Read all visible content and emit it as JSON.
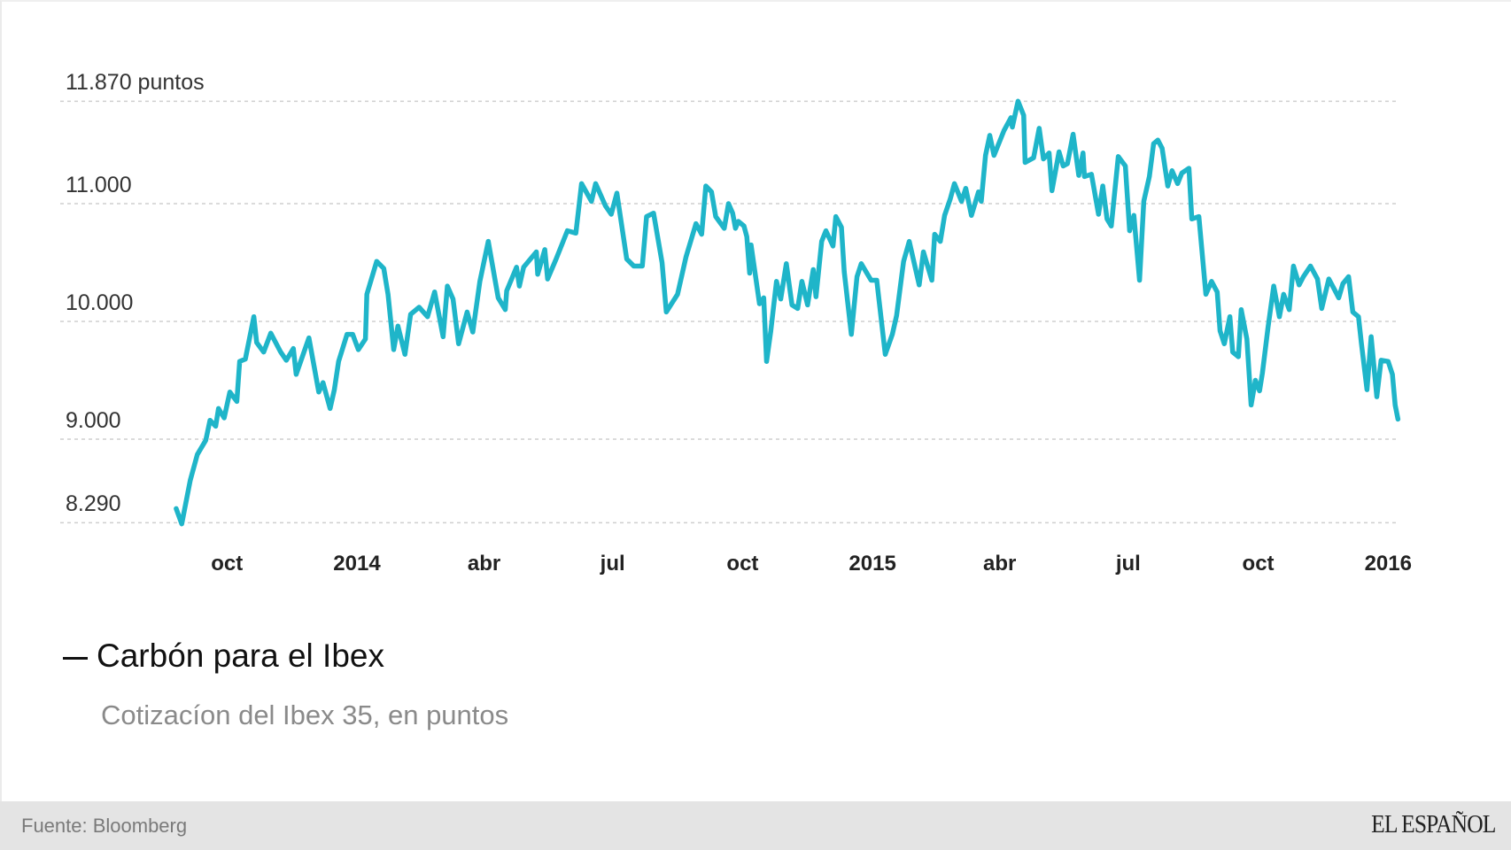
{
  "chart_data": {
    "type": "line",
    "title": "Carbón para el Ibex",
    "subtitle": "Cotizacíon del Ibex 35, en puntos",
    "xlabel": "",
    "ylabel": "puntos",
    "ylim": [
      8290,
      11870
    ],
    "grid": true,
    "legend_position": "bottom-left",
    "y_ticks": [
      {
        "value": 11870,
        "label": "11.870 puntos"
      },
      {
        "value": 11000,
        "label": "11.000"
      },
      {
        "value": 10000,
        "label": "10.000"
      },
      {
        "value": 9000,
        "label": "9.000"
      },
      {
        "value": 8290,
        "label": "8.290"
      }
    ],
    "x_ticks": [
      {
        "date": "2013-10-01",
        "label": "oct"
      },
      {
        "date": "2014-01-01",
        "label": "2014"
      },
      {
        "date": "2014-04-01",
        "label": "abr"
      },
      {
        "date": "2014-07-01",
        "label": "jul"
      },
      {
        "date": "2014-10-01",
        "label": "oct"
      },
      {
        "date": "2015-01-01",
        "label": "2015"
      },
      {
        "date": "2015-04-01",
        "label": "abr"
      },
      {
        "date": "2015-07-01",
        "label": "jul"
      },
      {
        "date": "2015-10-01",
        "label": "oct"
      },
      {
        "date": "2016-01-01",
        "label": "2016"
      }
    ],
    "series": [
      {
        "name": "Ibex 35",
        "color": "#1fb5c9",
        "x": [
          "2013-08-26",
          "2013-08-30",
          "2013-09-05",
          "2013-09-10",
          "2013-09-16",
          "2013-09-19",
          "2013-09-23",
          "2013-09-25",
          "2013-09-29",
          "2013-10-03",
          "2013-10-08",
          "2013-10-10",
          "2013-10-14",
          "2013-10-20",
          "2013-10-22",
          "2013-10-27",
          "2013-11-01",
          "2013-11-08",
          "2013-11-12",
          "2013-11-17",
          "2013-11-19",
          "2013-11-28",
          "2013-12-05",
          "2013-12-08",
          "2013-12-13",
          "2013-12-16",
          "2013-12-19",
          "2013-12-25",
          "2013-12-29",
          "2014-01-02",
          "2014-01-07",
          "2014-01-08",
          "2014-01-15",
          "2014-01-20",
          "2014-01-23",
          "2014-01-27",
          "2014-01-30",
          "2014-02-04",
          "2014-02-08",
          "2014-02-14",
          "2014-02-20",
          "2014-02-25",
          "2014-03-03",
          "2014-03-06",
          "2014-03-10",
          "2014-03-14",
          "2014-03-20",
          "2014-03-24",
          "2014-03-29",
          "2014-04-04",
          "2014-04-11",
          "2014-04-16",
          "2014-04-17",
          "2014-04-24",
          "2014-04-26",
          "2014-04-29",
          "2014-05-08",
          "2014-05-09",
          "2014-05-14",
          "2014-05-16",
          "2014-05-22",
          "2014-05-30",
          "2014-06-05",
          "2014-06-09",
          "2014-06-16",
          "2014-06-19",
          "2014-06-26",
          "2014-06-30",
          "2014-07-04",
          "2014-07-11",
          "2014-07-16",
          "2014-07-22",
          "2014-07-25",
          "2014-07-30",
          "2014-08-05",
          "2014-08-08",
          "2014-08-16",
          "2014-08-22",
          "2014-08-29",
          "2014-09-02",
          "2014-09-05",
          "2014-09-09",
          "2014-09-12",
          "2014-09-18",
          "2014-09-21",
          "2014-09-24",
          "2014-09-26",
          "2014-09-28",
          "2014-10-02",
          "2014-10-04",
          "2014-10-06",
          "2014-10-07",
          "2014-10-13",
          "2014-10-16",
          "2014-10-18",
          "2014-10-21",
          "2014-10-25",
          "2014-10-28",
          "2014-11-01",
          "2014-11-05",
          "2014-11-09",
          "2014-11-12",
          "2014-11-16",
          "2014-11-20",
          "2014-11-22",
          "2014-11-26",
          "2014-11-29",
          "2014-12-04",
          "2014-12-06",
          "2014-12-10",
          "2014-12-12",
          "2014-12-17",
          "2014-12-21",
          "2014-12-24",
          "2014-12-31",
          "2015-01-04",
          "2015-01-10",
          "2015-01-15",
          "2015-01-18",
          "2015-01-23",
          "2015-01-27",
          "2015-02-03",
          "2015-02-06",
          "2015-02-12",
          "2015-02-14",
          "2015-02-18",
          "2015-02-21",
          "2015-02-25",
          "2015-02-28",
          "2015-03-05",
          "2015-03-08",
          "2015-03-12",
          "2015-03-17",
          "2015-03-19",
          "2015-03-22",
          "2015-03-25",
          "2015-03-28",
          "2015-04-04",
          "2015-04-09",
          "2015-04-10",
          "2015-04-14",
          "2015-04-18",
          "2015-04-19",
          "2015-04-25",
          "2015-04-29",
          "2015-05-02",
          "2015-05-06",
          "2015-05-08",
          "2015-05-13",
          "2015-05-16",
          "2015-05-19",
          "2015-05-23",
          "2015-05-27",
          "2015-05-30",
          "2015-05-31",
          "2015-06-05",
          "2015-06-10",
          "2015-06-13",
          "2015-06-16",
          "2015-06-19",
          "2015-06-24",
          "2015-06-29",
          "2015-07-02",
          "2015-07-05",
          "2015-07-09",
          "2015-07-12",
          "2015-07-16",
          "2015-07-19",
          "2015-07-22",
          "2015-07-25",
          "2015-07-29",
          "2015-08-01",
          "2015-08-05",
          "2015-08-08",
          "2015-08-13",
          "2015-08-15",
          "2015-08-20",
          "2015-08-25",
          "2015-08-29",
          "2015-09-02",
          "2015-09-04",
          "2015-09-07",
          "2015-09-11",
          "2015-09-13",
          "2015-09-17",
          "2015-09-19",
          "2015-09-23",
          "2015-09-26",
          "2015-09-29",
          "2015-10-02",
          "2015-10-04",
          "2015-10-08",
          "2015-10-12",
          "2015-10-16",
          "2015-10-19",
          "2015-10-23",
          "2015-10-26",
          "2015-10-30",
          "2015-11-02",
          "2015-11-07",
          "2015-11-12",
          "2015-11-15",
          "2015-11-20",
          "2015-11-24",
          "2015-11-27",
          "2015-11-30",
          "2015-12-04",
          "2015-12-07",
          "2015-12-11",
          "2015-12-13",
          "2015-12-17",
          "2015-12-20",
          "2015-12-24",
          "2015-12-27",
          "2016-01-01",
          "2016-01-04",
          "2016-01-06",
          "2016-01-08"
        ],
        "values": [
          8410,
          8280,
          8650,
          8870,
          8990,
          9160,
          9110,
          9260,
          9180,
          9400,
          9320,
          9660,
          9680,
          10040,
          9820,
          9740,
          9900,
          9740,
          9670,
          9770,
          9550,
          9860,
          9400,
          9480,
          9260,
          9420,
          9660,
          9890,
          9890,
          9760,
          9850,
          10230,
          10510,
          10450,
          10230,
          9760,
          9960,
          9720,
          10060,
          10120,
          10040,
          10250,
          9870,
          10300,
          10190,
          9810,
          10080,
          9910,
          10340,
          10680,
          10200,
          10100,
          10260,
          10460,
          10300,
          10460,
          10590,
          10400,
          10610,
          10360,
          10530,
          10770,
          10750,
          11170,
          11020,
          11170,
          10980,
          10910,
          11090,
          10530,
          10470,
          10470,
          10890,
          10920,
          10500,
          10080,
          10230,
          10550,
          10830,
          10740,
          11150,
          11100,
          10890,
          10790,
          11000,
          10920,
          10790,
          10850,
          10810,
          10720,
          10410,
          10650,
          10150,
          10200,
          9660,
          9920,
          10340,
          10190,
          10490,
          10140,
          10110,
          10340,
          10140,
          10440,
          10210,
          10680,
          10770,
          10640,
          10890,
          10800,
          10420,
          9890,
          10380,
          10490,
          10350,
          10350,
          9720,
          9890,
          10050,
          10510,
          10680,
          10310,
          10590,
          10350,
          10740,
          10680,
          10900,
          11040,
          11170,
          11020,
          11130,
          10900,
          11100,
          11020,
          11410,
          11580,
          11410,
          11620,
          11730,
          11650,
          11870,
          11750,
          11350,
          11390,
          11640,
          11380,
          11430,
          11110,
          11440,
          11320,
          11340,
          11590,
          11240,
          11430,
          11230,
          11250,
          10910,
          11150,
          10870,
          10810,
          11400,
          11320,
          10770,
          10900,
          10350,
          11020,
          11230,
          11510,
          11540,
          11470,
          11150,
          11280,
          11170,
          11260,
          11300,
          10870,
          10890,
          10230,
          10340,
          10250,
          9920,
          9810,
          10040,
          9740,
          9700,
          10100,
          9850,
          9290,
          9500,
          9410,
          9560,
          9950,
          10300,
          10040,
          10230,
          10100,
          10470,
          10310,
          10380,
          10470,
          10360,
          10110,
          10360,
          10270,
          10200,
          10320,
          10380,
          10080,
          10040,
          9820,
          9420,
          9870,
          9360,
          9670,
          9660,
          9550,
          9290,
          9170
        ]
      }
    ]
  },
  "legend": {
    "title": "Carbón para el Ibex"
  },
  "subtitle": "Cotizacíon del Ibex 35, en puntos",
  "footer": {
    "source": "Fuente: Bloomberg",
    "brand": "EL ESPAÑOL"
  }
}
